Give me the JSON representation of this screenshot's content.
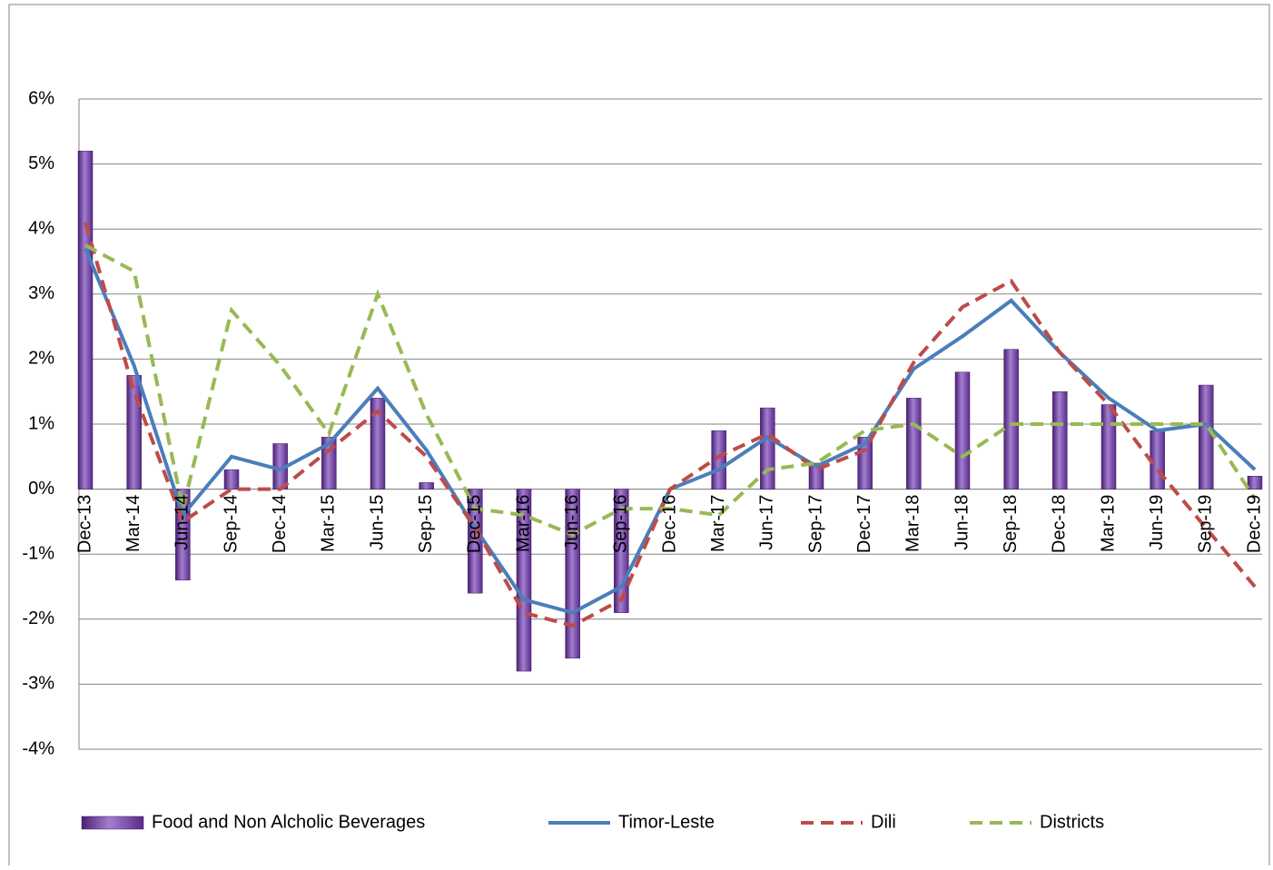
{
  "chart_data": {
    "type": "bar",
    "grid": true,
    "legend": "bottom",
    "categories": [
      "Dec-13",
      "Mar-14",
      "Jun-14",
      "Sep-14",
      "Dec-14",
      "Mar-15",
      "Jun-15",
      "Sep-15",
      "Dec-15",
      "Mar-16",
      "Jun-16",
      "Sep-16",
      "Dec-16",
      "Mar-17",
      "Jun-17",
      "Sep-17",
      "Dec-17",
      "Mar-18",
      "Jun-18",
      "Sep-18",
      "Dec-18",
      "Mar-19",
      "Jun-19",
      "Sep-19",
      "Dec-19"
    ],
    "ylim": [
      -4,
      6
    ],
    "yticks": [
      {
        "value": -4,
        "label": "-4%"
      },
      {
        "value": -3,
        "label": "-3%"
      },
      {
        "value": -2,
        "label": "-2%"
      },
      {
        "value": -1,
        "label": "-1%"
      },
      {
        "value": 0,
        "label": "0%"
      },
      {
        "value": 1,
        "label": "1%"
      },
      {
        "value": 2,
        "label": "2%"
      },
      {
        "value": 3,
        "label": "3%"
      },
      {
        "value": 4,
        "label": "4%"
      },
      {
        "value": 5,
        "label": "5%"
      },
      {
        "value": 6,
        "label": "6%"
      }
    ],
    "series": [
      {
        "name": "Food and Non Alcholic Beverages",
        "type": "bar",
        "color": "#7030a0",
        "values": [
          5.2,
          1.75,
          -1.4,
          0.3,
          0.7,
          0.8,
          1.4,
          0.1,
          -1.6,
          -2.8,
          -2.6,
          -1.9,
          0,
          0.9,
          1.25,
          0.4,
          0.8,
          1.4,
          1.8,
          2.15,
          1.5,
          1.3,
          0.9,
          1.6,
          0.2
        ]
      },
      {
        "name": "Timor-Leste",
        "type": "line",
        "color": "#4a7ebb",
        "dashed": false,
        "values": [
          3.7,
          1.9,
          -0.4,
          0.5,
          0.3,
          0.7,
          1.55,
          0.6,
          -0.6,
          -1.7,
          -1.9,
          -1.5,
          0,
          0.3,
          0.8,
          0.35,
          0.7,
          1.85,
          2.35,
          2.9,
          2.1,
          1.4,
          0.9,
          1.0,
          0.3
        ]
      },
      {
        "name": "Dili",
        "type": "line",
        "color": "#be4b48",
        "dashed": true,
        "values": [
          4.1,
          1.5,
          -0.5,
          0,
          0,
          0.6,
          1.2,
          0.5,
          -0.6,
          -1.9,
          -2.1,
          -1.7,
          0,
          0.5,
          0.85,
          0.3,
          0.6,
          1.95,
          2.8,
          3.2,
          2.1,
          1.3,
          0.3,
          -0.6,
          -1.5
        ]
      },
      {
        "name": "Districts",
        "type": "line",
        "color": "#98b954",
        "dashed": true,
        "values": [
          3.75,
          3.35,
          -0.3,
          2.75,
          1.9,
          0.85,
          3.0,
          1.15,
          -0.3,
          -0.4,
          -0.7,
          -0.3,
          -0.3,
          -0.4,
          0.3,
          0.4,
          0.9,
          1.0,
          0.5,
          1.0,
          1.0,
          1.0,
          1.0,
          1.0,
          -0.15
        ]
      }
    ]
  }
}
